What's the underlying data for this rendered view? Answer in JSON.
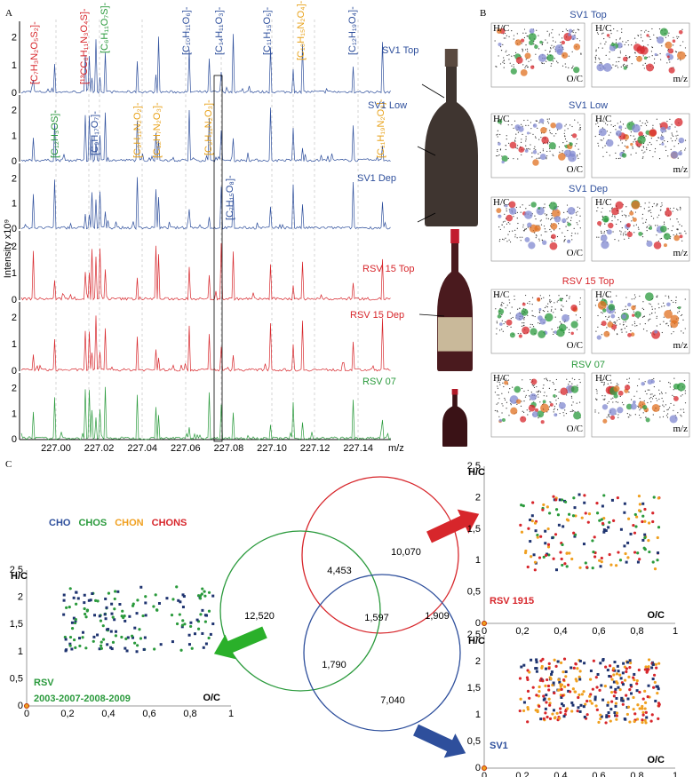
{
  "panel_a": {
    "label": "A",
    "y_axis_label": "Intensity x10⁹",
    "x_axis_label": "m/z",
    "x_ticks": [
      "227.00",
      "227.02",
      "227.04",
      "227.06",
      "227.08",
      "227.10",
      "227.12",
      "227.14"
    ],
    "y_ticks": [
      "0",
      "1",
      "2"
    ],
    "formulas": [
      {
        "text": "[C₇H₃N₂O₅S₂]-",
        "color": "#d7262b"
      },
      {
        "text": "[¹³CC₆H₁₁N₃O₄S]-",
        "color": "#d7262b"
      },
      {
        "text": "[C₆H₁₁O₇S]-",
        "color": "#2a9a3c"
      },
      {
        "text": "[C₁₀H₁₁O₆]-",
        "color": "#2e4f9c"
      },
      {
        "text": "[C₁₄H₁₁O₃]-",
        "color": "#2e4f9c"
      },
      {
        "text": "[C₁₁H₁₅O₅]-",
        "color": "#2e4f9c"
      },
      {
        "text": "[C₁₀H₁₅N₂O₄]-",
        "color": "#e8a21a"
      },
      {
        "text": "[C₁₂H₁₉O₄]-",
        "color": "#2e4f9c"
      },
      {
        "text": "[C₁₂H₃OS]-",
        "color": "#2a9a3c"
      },
      {
        "text": "[C₉H₁₇O₇]-",
        "color": "#2e4f9c"
      },
      {
        "text": "[C₉H₁₁N₂O₂]-",
        "color": "#e8a21a"
      },
      {
        "text": "[C₁₂H₇N₂O₃]-",
        "color": "#e8a21a"
      },
      {
        "text": "[C₉H₁₁N₂O₃]-",
        "color": "#e8a21a"
      },
      {
        "text": "[C₇H₁₅O₈]-",
        "color": "#2e4f9c"
      },
      {
        "text": "[C₁₁H₁₉N₂O₃]-",
        "color": "#e8a21a"
      }
    ],
    "samples": [
      {
        "name": "SV1 Top",
        "color": "#2e4f9c"
      },
      {
        "name": "SV1 Low",
        "color": "#2e4f9c"
      },
      {
        "name": "SV1 Dep",
        "color": "#2e4f9c"
      },
      {
        "name": "RSV 15 Top",
        "color": "#d7262b"
      },
      {
        "name": "RSV 15 Dep",
        "color": "#d7262b"
      },
      {
        "name": "RSV 07",
        "color": "#2a9a3c"
      }
    ]
  },
  "panel_b": {
    "label": "B",
    "samples": [
      {
        "name": "SV1 Top",
        "color": "#2e4f9c"
      },
      {
        "name": "SV1 Low",
        "color": "#2e4f9c"
      },
      {
        "name": "SV1 Dep",
        "color": "#2e4f9c"
      },
      {
        "name": "RSV 15 Top",
        "color": "#d7262b"
      },
      {
        "name": "RSV 07",
        "color": "#2a9a3c"
      }
    ],
    "h_c": "H/C",
    "o_c": "O/C",
    "m_z": "m/z"
  },
  "panel_c": {
    "label": "C",
    "legend": [
      {
        "text": "CHO",
        "color": "#2e4f9c"
      },
      {
        "text": "CHOS",
        "color": "#2a9a3c"
      },
      {
        "text": "CHON",
        "color": "#f0a020"
      },
      {
        "text": "CHONS",
        "color": "#d7262b"
      }
    ],
    "venn": [
      "10,070",
      "4,453",
      "12,520",
      "1,597",
      "1,909",
      "1,790",
      "7,040"
    ],
    "y_label": "H/C",
    "x_label": "O/C",
    "x_ticks": [
      "0",
      "0,2",
      "0,4",
      "0,6",
      "0,8",
      "1"
    ],
    "y_ticks": [
      "0",
      "0,5",
      "1",
      "1,5",
      "2",
      "2,5"
    ],
    "plots": [
      {
        "title": [
          "RSV",
          "2003-2007-2008-2009"
        ],
        "color": "#2a9a3c"
      },
      {
        "title": [
          "RSV 1915"
        ],
        "color": "#d7262b"
      },
      {
        "title": [
          "SV1"
        ],
        "color": "#2e4f9c"
      }
    ]
  }
}
